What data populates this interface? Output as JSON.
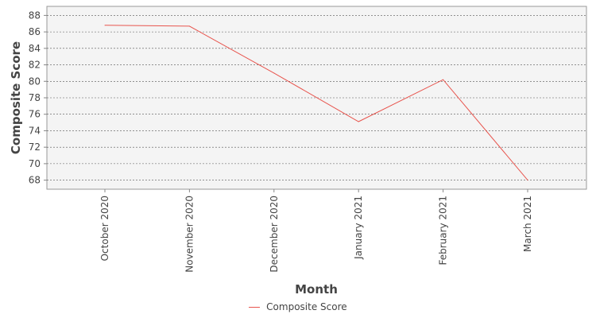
{
  "chart_data": {
    "type": "line",
    "categories": [
      "October 2020",
      "November 2020",
      "December 2020",
      "January 2021",
      "February 2021",
      "March 2021"
    ],
    "series": [
      {
        "name": "Composite Score",
        "values": [
          86.8,
          86.7,
          81.0,
          75.1,
          80.2,
          68.0
        ],
        "color": "#e8554e"
      }
    ],
    "xlabel": "Month",
    "ylabel": "Composite Score",
    "ylim": [
      66.9,
      89.1
    ],
    "yticks": [
      68,
      70,
      72,
      74,
      76,
      78,
      80,
      82,
      84,
      86,
      88
    ],
    "grid": true,
    "legend_position": "bottom",
    "plot_background": "#f4f4f4",
    "grid_color": "#555555"
  }
}
